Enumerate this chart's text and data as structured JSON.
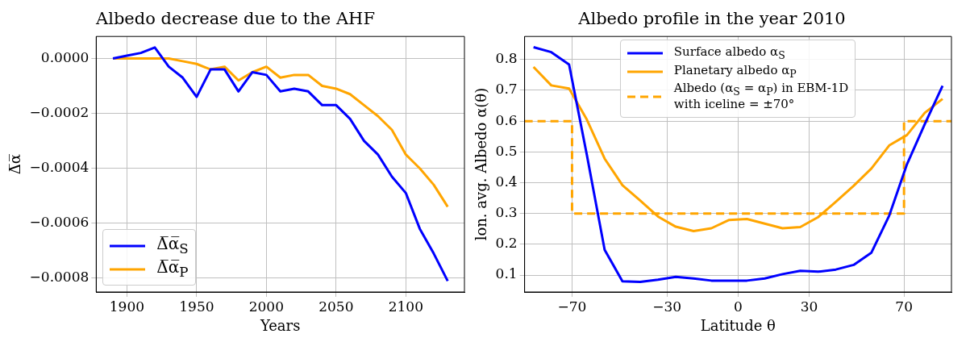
{
  "chart_data": [
    {
      "type": "line",
      "title": "Albedo decrease due to the AHF",
      "xlabel": "Years",
      "ylabel": "Δ̅α̅",
      "x": [
        1890,
        1900,
        1910,
        1920,
        1930,
        1940,
        1950,
        1960,
        1970,
        1980,
        1990,
        2000,
        2010,
        2020,
        2030,
        2040,
        2050,
        2060,
        2070,
        2080,
        2090,
        2100,
        2110,
        2120,
        2130
      ],
      "series": [
        {
          "name": "Δ̅α̅$_{S}$",
          "color": "#0000ff",
          "values": [
            0,
            1e-05,
            2e-05,
            4e-05,
            -3e-05,
            -7e-05,
            -0.00014,
            -4e-05,
            -4e-05,
            -0.00012,
            -5e-05,
            -6e-05,
            -0.00012,
            -0.00011,
            -0.00012,
            -0.00017,
            -0.00017,
            -0.00022,
            -0.0003,
            -0.00035,
            -0.00043,
            -0.00049,
            -0.00062,
            -0.00071,
            -0.00081
          ]
        },
        {
          "name": "Δ̅α̅$_{P}$",
          "color": "#ffa500",
          "values": [
            0,
            0,
            0,
            0,
            0,
            -1e-05,
            -2e-05,
            -4e-05,
            -3e-05,
            -8e-05,
            -5e-05,
            -3e-05,
            -7e-05,
            -6e-05,
            -6e-05,
            -0.0001,
            -0.00011,
            -0.00013,
            -0.00017,
            -0.00021,
            -0.00026,
            -0.00035,
            -0.0004,
            -0.00046,
            -0.00054
          ]
        }
      ],
      "xlim": [
        1878,
        2142
      ],
      "xticks": [
        1900,
        1950,
        2000,
        2050,
        2100
      ],
      "ylim": [
        -0.00085,
        8e-05
      ],
      "yticks": [
        {
          "value": 0,
          "label": "0.0000"
        },
        {
          "value": -0.0002,
          "label": "−0.0002"
        },
        {
          "value": -0.0004,
          "label": "−0.0004"
        },
        {
          "value": -0.0006,
          "label": "−0.0006"
        },
        {
          "value": -0.0008,
          "label": "−0.0008"
        }
      ],
      "grid": true,
      "legend": "bottom left",
      "line_style": "solid",
      "marker": "none"
    },
    {
      "type": "line",
      "title": "Albedo profile in the year 2010",
      "xlabel": "Latitude θ",
      "ylabel": "lon. avg. Albedo α(θ)",
      "x": [
        -86.25,
        -78.75,
        -71.25,
        -63.75,
        -56.25,
        -48.75,
        -41.25,
        -33.75,
        -26.25,
        -18.75,
        -11.25,
        -3.75,
        3.75,
        11.25,
        18.75,
        26.25,
        33.75,
        41.25,
        48.75,
        56.25,
        63.75,
        71.25,
        78.75,
        86.25
      ],
      "series": [
        {
          "name": "Surface albedo α$_{S}$",
          "color": "#0000ff",
          "values": [
            0.84,
            0.824,
            0.784,
            0.49,
            0.182,
            0.08,
            0.078,
            0.085,
            0.094,
            0.089,
            0.082,
            0.082,
            0.082,
            0.089,
            0.103,
            0.114,
            0.111,
            0.118,
            0.133,
            0.173,
            0.293,
            0.46,
            0.59,
            0.715
          ]
        },
        {
          "name": "Planetary albedo α$_{P}$",
          "color": "#ffa500",
          "values": [
            0.776,
            0.716,
            0.706,
            0.605,
            0.478,
            0.392,
            0.342,
            0.29,
            0.257,
            0.243,
            0.252,
            0.279,
            0.282,
            0.267,
            0.252,
            0.256,
            0.288,
            0.338,
            0.39,
            0.446,
            0.521,
            0.555,
            0.627,
            0.672
          ]
        },
        {
          "name": "Albedo (α$_{S}$ = α$_{P}$) in EBM-1D\nwith iceline = ±70°",
          "type": "step",
          "line_style": "dashed",
          "color": "#ffa500",
          "x": [
            -90,
            -70,
            70,
            90
          ],
          "values": [
            0.6,
            0.3,
            0.6,
            0.6
          ]
        }
      ],
      "xlim": [
        -90,
        90
      ],
      "xticks": [
        {
          "value": -70,
          "label": "−70"
        },
        {
          "value": -30,
          "label": "−30"
        },
        0,
        30,
        70
      ],
      "ylim": [
        0.045,
        0.875
      ],
      "yticks": [
        0.1,
        0.2,
        0.3,
        0.4,
        0.5,
        0.6,
        0.7,
        0.8
      ],
      "grid": true,
      "legend": "top",
      "line_style": "solid",
      "marker": "none"
    }
  ]
}
